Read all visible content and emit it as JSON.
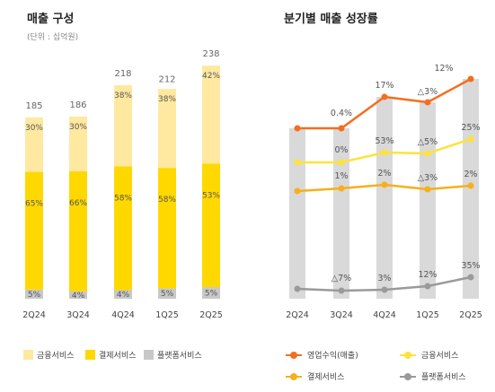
{
  "left": {
    "title": "매출 구성",
    "unit": "(단위 : 십억원)"
  },
  "right": {
    "title": "분기별 매출 성장률"
  },
  "colors": {
    "finance_light": "#FFE8A0",
    "payment_yellow": "#FFD800",
    "platform_gray": "#C8C8C8",
    "op_orange": "#F46E1F",
    "fin_yellow": "#FFE23A",
    "pay_amber": "#F5B01C",
    "plat_gray": "#9A9A9A",
    "bg_bar": "#D9D9D9"
  },
  "legend_left": [
    "금융서비스",
    "결제서비스",
    "플랫폼서비스"
  ],
  "legend_right": [
    "영업수익(매출)",
    "금융서비스",
    "결제서비스",
    "플랫폼서비스"
  ],
  "chart_data": [
    {
      "type": "bar",
      "title": "매출 구성",
      "subtitle": "(단위 : 십억원)",
      "categories": [
        "2Q24",
        "3Q24",
        "4Q24",
        "1Q25",
        "2Q25"
      ],
      "totals": [
        185,
        186,
        218,
        212,
        238
      ],
      "total_labels": [
        "185",
        "186",
        "218",
        "212",
        "238"
      ],
      "series": [
        {
          "name": "플랫폼서비스",
          "values": [
            5,
            4,
            4,
            5,
            5
          ],
          "labels": [
            "5%",
            "4%",
            "4%",
            "5%",
            "5%"
          ]
        },
        {
          "name": "결제서비스",
          "values": [
            65,
            66,
            58,
            58,
            53
          ],
          "labels": [
            "65%",
            "66%",
            "58%",
            "58%",
            "53%"
          ]
        },
        {
          "name": "금융서비스",
          "values": [
            30,
            30,
            38,
            38,
            42
          ],
          "labels": [
            "30%",
            "30%",
            "38%",
            "38%",
            "42%"
          ]
        }
      ],
      "ylim": [
        0,
        250
      ]
    },
    {
      "type": "line",
      "title": "분기별 매출 성장률",
      "categories": [
        "2Q24",
        "3Q24",
        "4Q24",
        "1Q25",
        "2Q25"
      ],
      "series": [
        {
          "name": "영업수익(매출)",
          "values": [
            185,
            186,
            218,
            212,
            238
          ],
          "labels": [
            "",
            "0.4%",
            "17%",
            "△3%",
            "12%"
          ]
        },
        {
          "name": "금융서비스",
          "values": [
            0,
            0,
            53,
            -5,
            25
          ],
          "labels": [
            "",
            "0%",
            "53%",
            "△5%",
            "25%"
          ]
        },
        {
          "name": "결제서비스",
          "values": [
            0,
            1,
            2,
            -3,
            2
          ],
          "labels": [
            "",
            "1%",
            "2%",
            "△3%",
            "2%"
          ]
        },
        {
          "name": "플랫폼서비스",
          "values": [
            0,
            -7,
            3,
            12,
            35
          ],
          "labels": [
            "",
            "△7%",
            "3%",
            "12%",
            "35%"
          ]
        }
      ]
    }
  ]
}
